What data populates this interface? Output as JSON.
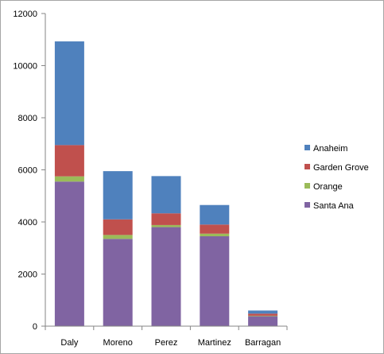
{
  "chart_data": {
    "type": "bar",
    "stacked": true,
    "title": "",
    "xlabel": "",
    "ylabel": "",
    "ylim": [
      0,
      12000
    ],
    "yticks": [
      0,
      2000,
      4000,
      6000,
      8000,
      10000,
      12000
    ],
    "grid": false,
    "legend_position": "right",
    "categories": [
      "Daly",
      "Moreno",
      "Perez",
      "Martinez",
      "Barragan"
    ],
    "series": [
      {
        "name": "Santa Ana",
        "color": "#8064a2",
        "values": [
          5550,
          3350,
          3800,
          3450,
          380
        ]
      },
      {
        "name": "Orange",
        "color": "#9bbb59",
        "values": [
          200,
          150,
          80,
          100,
          20
        ]
      },
      {
        "name": "Garden Grove",
        "color": "#c0504d",
        "values": [
          1200,
          600,
          450,
          350,
          80
        ]
      },
      {
        "name": "Anaheim",
        "color": "#4f81bd",
        "values": [
          3980,
          1850,
          1430,
          750,
          120
        ]
      }
    ],
    "legend_order": [
      "Anaheim",
      "Garden Grove",
      "Orange",
      "Santa Ana"
    ]
  }
}
